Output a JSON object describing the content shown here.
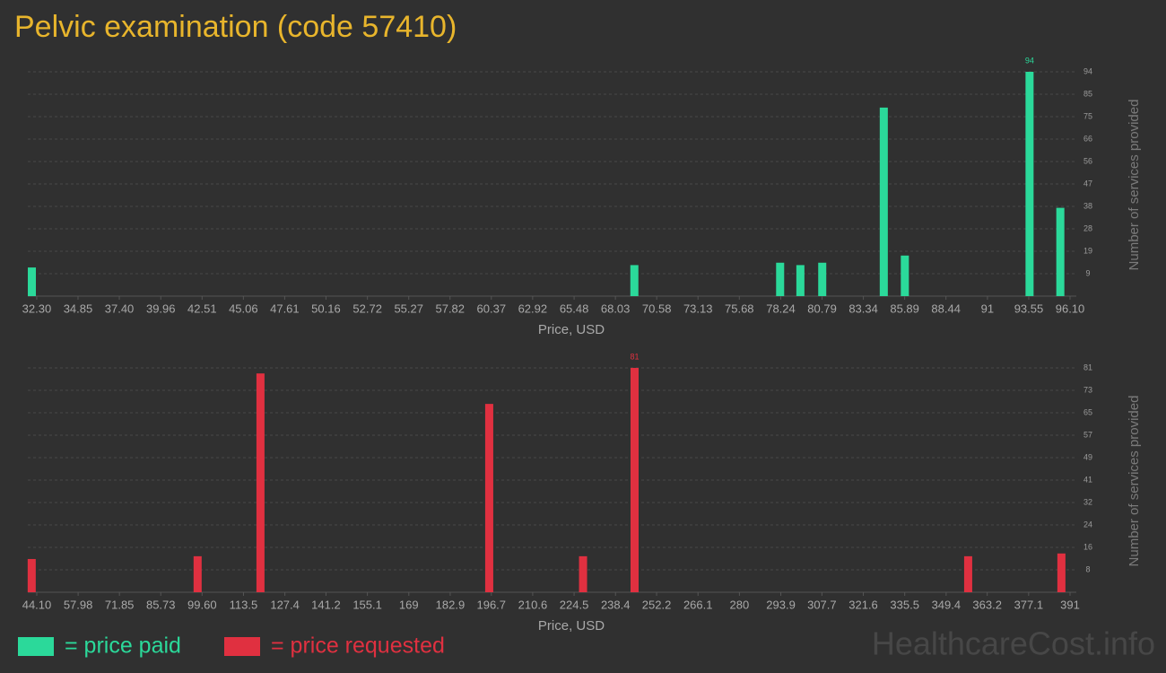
{
  "title": "Pelvic examination (code 57410)",
  "watermark": "HealthcareCost.info",
  "chart_data": [
    {
      "type": "bar",
      "name": "= price paid",
      "color": "#2bd99a",
      "x": [
        32.0,
        69.2,
        78.2,
        79.45,
        80.8,
        84.6,
        85.9,
        93.6,
        95.5
      ],
      "values": [
        12,
        13,
        14,
        13,
        14,
        79,
        17,
        94,
        37
      ],
      "xlim": [
        31.75,
        96.21
      ],
      "xticks": [
        {
          "value": 32.3,
          "label": "32.30"
        },
        34.85,
        {
          "value": 37.4,
          "label": "37.40"
        },
        39.96,
        42.51,
        45.06,
        47.61,
        50.16,
        52.72,
        55.27,
        57.82,
        60.37,
        62.92,
        65.48,
        68.03,
        70.58,
        73.13,
        75.68,
        78.24,
        80.79,
        83.34,
        85.89,
        88.44,
        91,
        93.55,
        {
          "value": 96.1,
          "label": "96.10"
        }
      ],
      "ylim": [
        0,
        94
      ],
      "yticks": [
        {
          "value": 9.4,
          "label": "9"
        },
        {
          "value": 18.8,
          "label": "19"
        },
        {
          "value": 28.2,
          "label": "28"
        },
        {
          "value": 37.6,
          "label": "38"
        },
        47,
        {
          "value": 56.4,
          "label": "56"
        },
        {
          "value": 65.8,
          "label": "66"
        },
        {
          "value": 75.2,
          "label": "75"
        },
        {
          "value": 84.6,
          "label": "85"
        },
        94
      ],
      "xlabel": "Price, USD",
      "ylabel": "Number of services provided",
      "grid": true,
      "label_max": true
    },
    {
      "type": "bar",
      "name": "= price requested",
      "color": "#e03040",
      "x": [
        42.4,
        98.1,
        119.2,
        196.0,
        227.5,
        244.8,
        356.8,
        388.1
      ],
      "values": [
        12,
        13,
        79,
        68,
        13,
        81,
        13,
        14
      ],
      "xlim": [
        41.09,
        391.6
      ],
      "xticks": [
        {
          "value": 44.1,
          "label": "44.10"
        },
        57.98,
        71.85,
        85.73,
        {
          "value": 99.6,
          "label": "99.60"
        },
        113.5,
        127.4,
        141.2,
        155.1,
        169,
        182.9,
        196.7,
        210.6,
        224.5,
        238.4,
        252.2,
        266.1,
        280,
        293.9,
        307.7,
        321.6,
        335.5,
        349.4,
        363.2,
        377.1,
        391
      ],
      "ylim": [
        0,
        81
      ],
      "yticks": [
        {
          "value": 8.1,
          "label": "8"
        },
        {
          "value": 16.2,
          "label": "16"
        },
        {
          "value": 24.3,
          "label": "24"
        },
        {
          "value": 32.4,
          "label": "32"
        },
        {
          "value": 40.5,
          "label": "41"
        },
        {
          "value": 48.6,
          "label": "49"
        },
        {
          "value": 56.7,
          "label": "57"
        },
        {
          "value": 64.8,
          "label": "65"
        },
        {
          "value": 72.9,
          "label": "73"
        },
        81
      ],
      "xlabel": "Price, USD",
      "ylabel": "Number of services provided",
      "grid": true,
      "label_max": true
    }
  ]
}
